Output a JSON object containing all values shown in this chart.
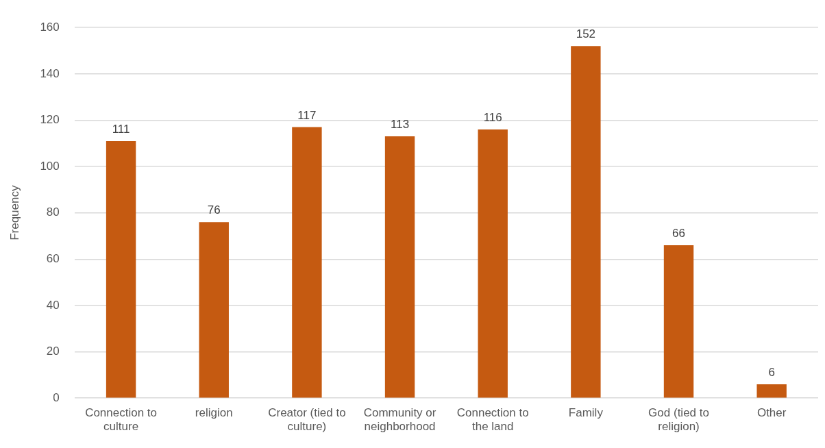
{
  "chart_data": {
    "type": "bar",
    "ylabel": "Frequency",
    "categories": [
      "Connection to culture",
      "religion",
      "Creator (tied to culture)",
      "Community or neighborhood",
      "Connection to the land",
      "Family",
      "God (tied to religion)",
      "Other"
    ],
    "values": [
      111,
      76,
      117,
      113,
      116,
      152,
      66,
      6
    ],
    "color": "#c55a11",
    "ylim": [
      0,
      160
    ],
    "yticks": [
      0,
      20,
      40,
      60,
      80,
      100,
      120,
      140,
      160
    ],
    "grid": "y",
    "data_labels": true
  }
}
